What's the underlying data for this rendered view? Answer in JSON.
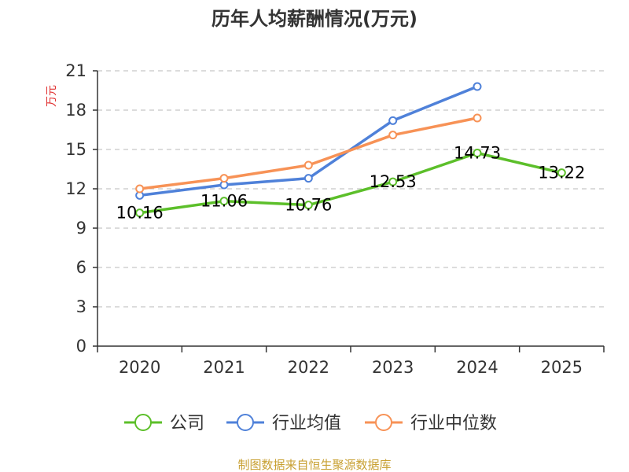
{
  "chart_data": {
    "type": "line",
    "title": "历年人均薪酬情况(万元)",
    "ylabel": "万元",
    "xlabel": "",
    "categories": [
      "2020",
      "2021",
      "2022",
      "2023",
      "2024",
      "2025"
    ],
    "ylim": [
      0,
      21
    ],
    "yticks": [
      "0",
      "3",
      "6",
      "9",
      "12",
      "15",
      "18",
      "21"
    ],
    "grid": true,
    "legend_position": "bottom",
    "series": [
      {
        "name": "公司",
        "color": "#5cbf2a",
        "values": [
          10.16,
          11.06,
          10.76,
          12.53,
          14.73,
          13.22
        ],
        "labels": [
          "10.16",
          "11.06",
          "10.76",
          "12.53",
          "14.73",
          "13.22"
        ]
      },
      {
        "name": "行业均值",
        "color": "#4f81d9",
        "values": [
          11.5,
          12.3,
          12.8,
          17.2,
          19.8,
          null
        ]
      },
      {
        "name": "行业中位数",
        "color": "#f79256",
        "values": [
          12.0,
          12.8,
          13.8,
          16.1,
          17.4,
          null
        ]
      }
    ]
  },
  "footer": {
    "source": "制图数据来自恒生聚源数据库",
    "source_color": "#c8a032",
    "ylabel_color": "#e03030"
  }
}
